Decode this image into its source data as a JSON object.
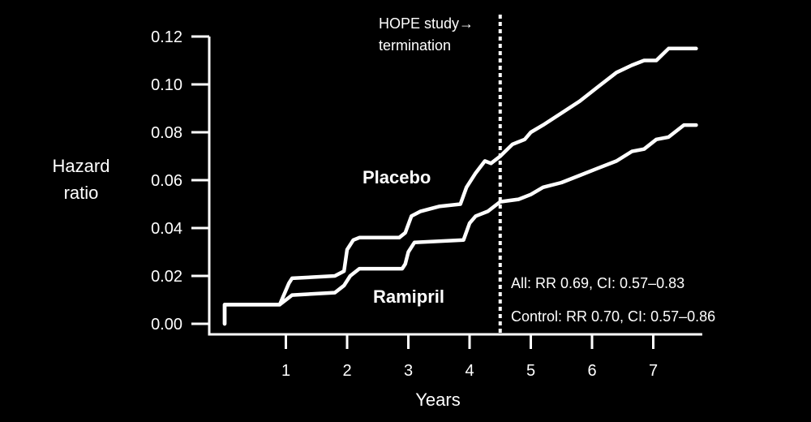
{
  "chart_data": {
    "type": "line",
    "xlabel": "Years",
    "ylabel_lines": [
      "Hazard",
      "ratio"
    ],
    "x_ticks": [
      1,
      2,
      3,
      4,
      5,
      6,
      7
    ],
    "y_ticks": [
      "0.00",
      "0.02",
      "0.04",
      "0.06",
      "0.08",
      "0.10",
      "0.12"
    ],
    "xlim": [
      0,
      7.8
    ],
    "ylim": [
      0,
      0.12
    ],
    "series": [
      {
        "name": "Placebo",
        "x": [
          0,
          0,
          0.9,
          1.05,
          1.1,
          1.8,
          1.95,
          2.0,
          2.1,
          2.2,
          2.85,
          2.95,
          3.05,
          3.2,
          3.5,
          3.85,
          3.95,
          4.1,
          4.25,
          4.35,
          4.5,
          4.7,
          4.9,
          5.0,
          5.2,
          5.5,
          5.8,
          6.1,
          6.4,
          6.65,
          6.85,
          7.05,
          7.25,
          7.5,
          7.7
        ],
        "y": [
          0,
          0.008,
          0.008,
          0.017,
          0.019,
          0.02,
          0.022,
          0.031,
          0.035,
          0.036,
          0.036,
          0.038,
          0.045,
          0.047,
          0.049,
          0.05,
          0.057,
          0.063,
          0.068,
          0.067,
          0.07,
          0.075,
          0.077,
          0.08,
          0.083,
          0.088,
          0.093,
          0.099,
          0.105,
          0.108,
          0.11,
          0.11,
          0.115,
          0.115,
          0.115
        ]
      },
      {
        "name": "Ramipril",
        "x": [
          0,
          0,
          0.9,
          1.05,
          1.1,
          1.8,
          1.95,
          2.05,
          2.2,
          2.9,
          2.95,
          3.0,
          3.1,
          3.9,
          4.0,
          4.1,
          4.3,
          4.5,
          4.8,
          5.0,
          5.2,
          5.5,
          5.8,
          6.1,
          6.4,
          6.65,
          6.85,
          7.05,
          7.25,
          7.5,
          7.7
        ],
        "y": [
          0,
          0.008,
          0.008,
          0.011,
          0.012,
          0.013,
          0.016,
          0.02,
          0.023,
          0.023,
          0.025,
          0.03,
          0.034,
          0.035,
          0.042,
          0.045,
          0.047,
          0.051,
          0.052,
          0.054,
          0.057,
          0.059,
          0.062,
          0.065,
          0.068,
          0.072,
          0.073,
          0.077,
          0.078,
          0.083,
          0.083
        ]
      }
    ],
    "termination_x": 4.5,
    "termination_label_lines": [
      "HOPE study→",
      "termination"
    ],
    "annotations": [
      "All: RR 0.69, CI: 0.57–0.83",
      "Control: RR 0.70, CI: 0.57–0.86"
    ]
  }
}
